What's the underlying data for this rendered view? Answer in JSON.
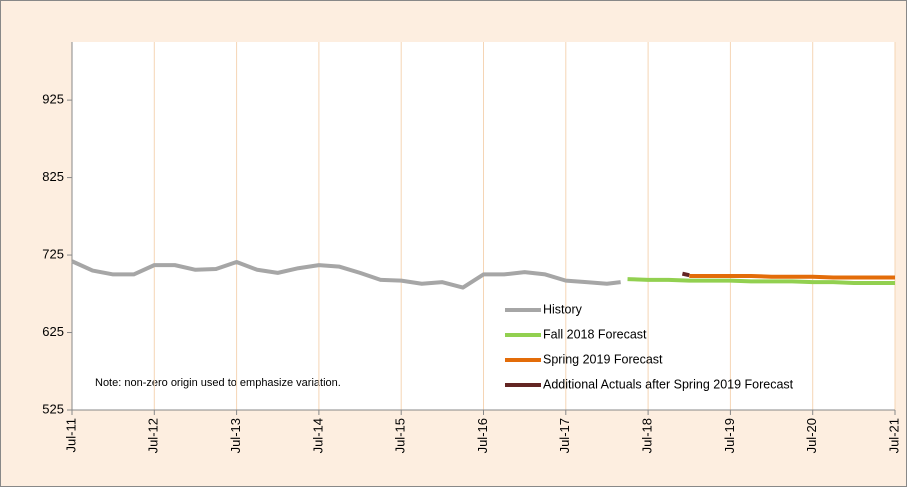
{
  "chart_data": {
    "type": "line",
    "annotation": "Note: non-zero origin used to emphasize variation.",
    "legend": "lower right",
    "grid": "x",
    "ylim": [
      525,
      1000
    ],
    "yticks": [
      525,
      625,
      725,
      825,
      925
    ],
    "xlim": [
      "2011-07",
      "2021-07"
    ],
    "xticks": [
      {
        "value": "2011-07",
        "label": "Jul-11"
      },
      {
        "value": "2012-07",
        "label": "Jul-12"
      },
      {
        "value": "2013-07",
        "label": "Jul-13"
      },
      {
        "value": "2014-07",
        "label": "Jul-14"
      },
      {
        "value": "2015-07",
        "label": "Jul-15"
      },
      {
        "value": "2016-07",
        "label": "Jul-16"
      },
      {
        "value": "2017-07",
        "label": "Jul-17"
      },
      {
        "value": "2018-07",
        "label": "Jul-18"
      },
      {
        "value": "2019-07",
        "label": "Jul-19"
      },
      {
        "value": "2020-07",
        "label": "Jul-20"
      },
      {
        "value": "2021-07",
        "label": "Jul-21"
      }
    ],
    "series": [
      {
        "name": "History",
        "color": "#a6a6a6",
        "x": [
          "2011-07",
          "2011-10",
          "2012-01",
          "2012-04",
          "2012-07",
          "2012-10",
          "2013-01",
          "2013-04",
          "2013-07",
          "2013-10",
          "2014-01",
          "2014-04",
          "2014-07",
          "2014-10",
          "2015-01",
          "2015-04",
          "2015-07",
          "2015-10",
          "2016-01",
          "2016-04",
          "2016-07",
          "2016-10",
          "2017-01",
          "2017-04",
          "2017-07",
          "2017-10",
          "2018-01",
          "2018-03"
        ],
        "values": [
          717,
          705,
          700,
          700,
          712,
          712,
          706,
          707,
          716,
          706,
          702,
          708,
          712,
          710,
          702,
          693,
          692,
          688,
          690,
          683,
          700,
          700,
          703,
          700,
          692,
          690,
          688,
          690
        ]
      },
      {
        "name": "Fall 2018 Forecast",
        "color": "#92d050",
        "x": [
          "2018-04",
          "2018-07",
          "2018-10",
          "2019-01",
          "2019-04",
          "2019-07",
          "2019-10",
          "2020-01",
          "2020-04",
          "2020-07",
          "2020-10",
          "2021-01",
          "2021-04",
          "2021-07"
        ],
        "values": [
          694,
          693,
          693,
          692,
          692,
          692,
          691,
          691,
          691,
          690,
          690,
          689,
          689,
          689
        ]
      },
      {
        "name": "Spring 2019 Forecast",
        "color": "#e36c09",
        "x": [
          "2019-01",
          "2019-04",
          "2019-07",
          "2019-10",
          "2020-01",
          "2020-04",
          "2020-07",
          "2020-10",
          "2021-01",
          "2021-04",
          "2021-07"
        ],
        "values": [
          698,
          698,
          698,
          698,
          697,
          697,
          697,
          696,
          696,
          696,
          696
        ]
      },
      {
        "name": "Additional Actuals after Spring 2019 Forecast",
        "color": "#632523",
        "x": [
          "2018-12",
          "2019-01"
        ],
        "values": [
          701,
          699
        ]
      }
    ]
  }
}
